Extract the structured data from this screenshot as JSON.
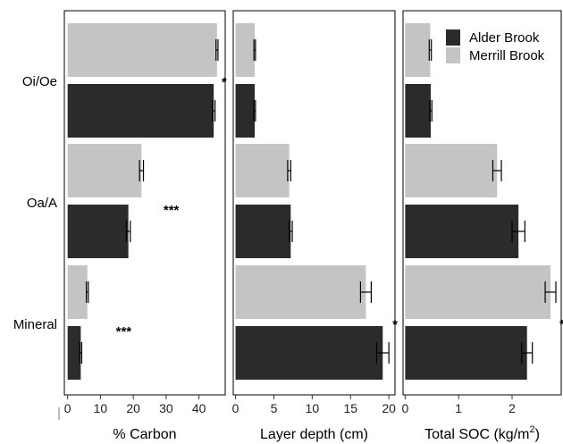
{
  "chart_data": {
    "type": "bar",
    "orientation": "horizontal",
    "categories": [
      "Oi/Oe",
      "Oa/A",
      "Mineral"
    ],
    "legend": {
      "position": "top-right",
      "entries": [
        {
          "label": "Alder Brook",
          "color": "#2b2b2b"
        },
        {
          "label": "Merrill Brook",
          "color": "#c4c4c4"
        }
      ]
    },
    "panels": [
      {
        "xlabel": "% Carbon",
        "xlabel_sup": "",
        "xlim": [
          -1,
          48
        ],
        "ticks": [
          0,
          10,
          20,
          30,
          40
        ],
        "series": [
          {
            "name": "Alder Brook",
            "values": [
              44.5,
              18.5,
              4
            ],
            "errors": [
              0.4,
              0.6,
              0.3
            ]
          },
          {
            "name": "Merrill Brook",
            "values": [
              45.5,
              22.5,
              6
            ],
            "errors": [
              0.3,
              0.6,
              0.3
            ]
          }
        ],
        "significance": [
          "*",
          "***",
          "***"
        ]
      },
      {
        "xlabel": "Layer depth (cm)",
        "xlabel_sup": "",
        "xlim": [
          -0.3,
          20.8
        ],
        "ticks": [
          0,
          5,
          10,
          15,
          20
        ],
        "series": [
          {
            "name": "Alder Brook",
            "values": [
              2.5,
              7.2,
              19.2
            ],
            "errors": [
              0.1,
              0.2,
              0.8
            ]
          },
          {
            "name": "Merrill Brook",
            "values": [
              2.5,
              7.0,
              17.0
            ],
            "errors": [
              0.1,
              0.2,
              0.7
            ]
          }
        ],
        "significance": [
          "",
          "",
          "*"
        ]
      },
      {
        "xlabel": "Total SOC (kg/m",
        "xlabel_sup": "2",
        "xlabel_suffix": ")",
        "xlim": [
          -0.04,
          2.92
        ],
        "ticks": [
          0,
          1,
          2
        ],
        "series": [
          {
            "name": "Alder Brook",
            "values": [
              0.48,
              2.12,
              2.28
            ],
            "errors": [
              0.02,
              0.12,
              0.1
            ]
          },
          {
            "name": "Merrill Brook",
            "values": [
              0.47,
              1.72,
              2.72
            ],
            "errors": [
              0.02,
              0.08,
              0.1
            ]
          }
        ],
        "significance": [
          "",
          "",
          "*"
        ]
      }
    ]
  }
}
